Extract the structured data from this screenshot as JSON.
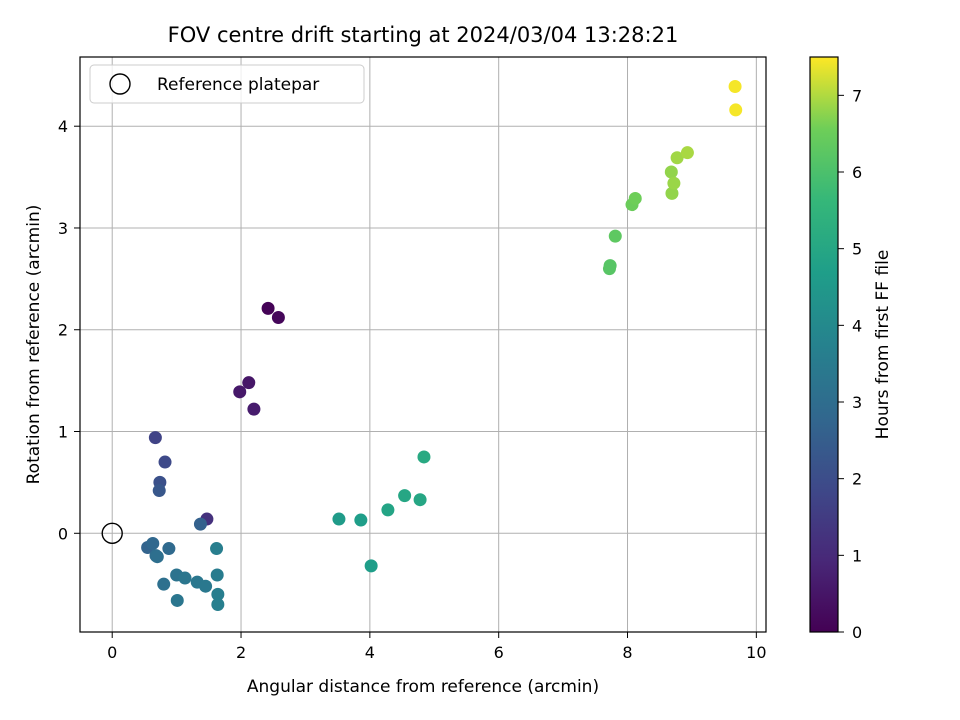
{
  "chart_data": {
    "type": "scatter",
    "title": "FOV centre drift starting at 2024/03/04 13:28:21",
    "xlabel": "Angular distance from reference (arcmin)",
    "ylabel": "Rotation from reference (arcmin)",
    "xlim": [
      -0.5,
      10.15
    ],
    "ylim": [
      -0.97,
      4.68
    ],
    "xticks": [
      0,
      2,
      4,
      6,
      8,
      10
    ],
    "yticks": [
      0,
      1,
      2,
      3,
      4
    ],
    "grid": true,
    "legend": {
      "placement": "top-left",
      "entries": [
        "Reference platepar"
      ]
    },
    "colorbar": {
      "label": "Hours from first FF file",
      "range": [
        0,
        7.5
      ],
      "ticks": [
        0,
        1,
        2,
        3,
        4,
        5,
        6,
        7
      ],
      "colormap": "viridis"
    },
    "reference_point": {
      "x": 0,
      "y": 0,
      "label": "Reference platepar"
    },
    "points": [
      {
        "x": 2.42,
        "y": 2.21,
        "c": 0.05
      },
      {
        "x": 2.58,
        "y": 2.12,
        "c": 0.15
      },
      {
        "x": 2.12,
        "y": 1.48,
        "c": 0.5
      },
      {
        "x": 1.98,
        "y": 1.39,
        "c": 0.55
      },
      {
        "x": 2.2,
        "y": 1.22,
        "c": 0.65
      },
      {
        "x": 1.47,
        "y": 0.14,
        "c": 1.2
      },
      {
        "x": 0.67,
        "y": 0.94,
        "c": 1.7
      },
      {
        "x": 0.82,
        "y": 0.7,
        "c": 1.9
      },
      {
        "x": 0.74,
        "y": 0.5,
        "c": 2.1
      },
      {
        "x": 0.73,
        "y": 0.42,
        "c": 2.3
      },
      {
        "x": 1.37,
        "y": 0.09,
        "c": 2.6
      },
      {
        "x": 0.55,
        "y": -0.14,
        "c": 2.7
      },
      {
        "x": 0.63,
        "y": -0.1,
        "c": 2.8
      },
      {
        "x": 0.88,
        "y": -0.15,
        "c": 2.9
      },
      {
        "x": 0.68,
        "y": -0.22,
        "c": 3.0
      },
      {
        "x": 0.7,
        "y": -0.23,
        "c": 3.05
      },
      {
        "x": 0.8,
        "y": -0.5,
        "c": 3.1
      },
      {
        "x": 1.0,
        "y": -0.41,
        "c": 3.2
      },
      {
        "x": 1.13,
        "y": -0.44,
        "c": 3.3
      },
      {
        "x": 1.32,
        "y": -0.48,
        "c": 3.35
      },
      {
        "x": 1.45,
        "y": -0.52,
        "c": 3.4
      },
      {
        "x": 1.01,
        "y": -0.66,
        "c": 3.3
      },
      {
        "x": 1.62,
        "y": -0.15,
        "c": 3.6
      },
      {
        "x": 1.63,
        "y": -0.41,
        "c": 3.55
      },
      {
        "x": 1.64,
        "y": -0.6,
        "c": 3.6
      },
      {
        "x": 1.64,
        "y": -0.7,
        "c": 3.65
      },
      {
        "x": 3.52,
        "y": 0.14,
        "c": 4.6
      },
      {
        "x": 3.86,
        "y": 0.13,
        "c": 4.7
      },
      {
        "x": 4.02,
        "y": -0.32,
        "c": 4.7
      },
      {
        "x": 4.28,
        "y": 0.23,
        "c": 4.9
      },
      {
        "x": 4.54,
        "y": 0.37,
        "c": 5.0
      },
      {
        "x": 4.78,
        "y": 0.33,
        "c": 5.0
      },
      {
        "x": 4.84,
        "y": 0.75,
        "c": 5.1
      },
      {
        "x": 7.72,
        "y": 2.6,
        "c": 6.2
      },
      {
        "x": 7.73,
        "y": 2.63,
        "c": 6.2
      },
      {
        "x": 7.81,
        "y": 2.92,
        "c": 6.3
      },
      {
        "x": 8.07,
        "y": 3.23,
        "c": 6.5
      },
      {
        "x": 8.12,
        "y": 3.29,
        "c": 6.55
      },
      {
        "x": 8.68,
        "y": 3.55,
        "c": 6.8
      },
      {
        "x": 8.69,
        "y": 3.34,
        "c": 6.8
      },
      {
        "x": 8.72,
        "y": 3.44,
        "c": 6.85
      },
      {
        "x": 8.77,
        "y": 3.69,
        "c": 6.9
      },
      {
        "x": 8.93,
        "y": 3.74,
        "c": 6.95
      },
      {
        "x": 9.67,
        "y": 4.39,
        "c": 7.45
      },
      {
        "x": 9.68,
        "y": 4.16,
        "c": 7.45
      }
    ]
  }
}
